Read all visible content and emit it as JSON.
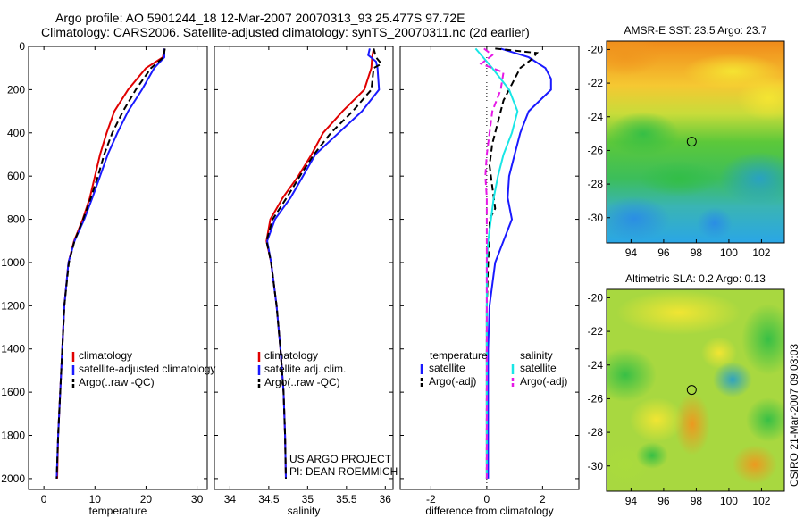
{
  "title": {
    "line1": "Argo profile: AO 5901244_18 12-Mar-2007 20070313_93 25.477S 97.72E",
    "line2": "Climatology: CARS2006. Satellite-adjusted climatology: synTS_20070311.nc (2d earlier)"
  },
  "credit": "CSIRO 21-Mar-2007 09:03:03",
  "colors": {
    "red": "#e00000",
    "blue": "#1a1aff",
    "black": "#000000",
    "cyan": "#19e6e6",
    "magenta": "#e619e6"
  },
  "chart_data": [
    {
      "type": "line",
      "name": "temperature-profile",
      "xlabel": "temperature",
      "ylabel": "",
      "xlim": [
        -3,
        32
      ],
      "ylim": [
        2050,
        0
      ],
      "xticks": [
        0,
        10,
        20,
        30
      ],
      "yticks": [
        0,
        200,
        400,
        600,
        800,
        1000,
        1200,
        1400,
        1600,
        1800,
        2000
      ],
      "legend": [
        "climatology",
        "satellite-adjusted climatology",
        "Argo(..raw -QC)"
      ],
      "series": [
        {
          "name": "climatology",
          "color": "red",
          "y": [
            10,
            50,
            100,
            200,
            300,
            400,
            500,
            600,
            700,
            800,
            900,
            1000,
            1200,
            1400,
            1600,
            1800,
            2000
          ],
          "values": [
            23.6,
            23.3,
            20,
            16.5,
            13.8,
            12.3,
            11,
            10,
            9,
            7.6,
            5.9,
            4.8,
            4,
            3.6,
            3.2,
            2.8,
            2.6
          ]
        },
        {
          "name": "satellite-adjusted climatology",
          "color": "blue",
          "y": [
            10,
            50,
            100,
            200,
            300,
            400,
            500,
            600,
            700,
            800,
            900,
            1000,
            1200,
            1400,
            1600,
            1800,
            2000
          ],
          "values": [
            23.6,
            23.6,
            21.6,
            19.2,
            16.5,
            14.4,
            12.5,
            11,
            9.5,
            7.9,
            6,
            4.8,
            4,
            3.6,
            3.2,
            2.8,
            2.5
          ]
        },
        {
          "name": "Argo(..raw -QC)",
          "color": "black",
          "y": [
            10,
            50,
            100,
            200,
            300,
            400,
            500,
            600,
            700,
            800,
            900,
            1000,
            1200,
            1400,
            1600,
            1800,
            2000
          ],
          "values": [
            23.7,
            23.4,
            21,
            18,
            15.5,
            13.4,
            11.8,
            10.6,
            9.2,
            7.7,
            6,
            4.9,
            4,
            3.6,
            3.2,
            2.8,
            2.5
          ]
        }
      ]
    },
    {
      "type": "line",
      "name": "salinity-profile",
      "xlabel": "salinity",
      "ylabel": "",
      "xlim": [
        33.8,
        36.1
      ],
      "ylim": [
        2050,
        0
      ],
      "xticks": [
        34,
        34.5,
        35,
        35.5,
        36
      ],
      "legend": [
        "climatology",
        "satellite adj. clim.",
        "Argo(..raw -QC)"
      ],
      "annotation": [
        "US ARGO PROJECT",
        "PI: DEAN ROEMMICH"
      ],
      "series": [
        {
          "name": "climatology",
          "color": "red",
          "y": [
            10,
            50,
            100,
            200,
            300,
            400,
            500,
            600,
            700,
            800,
            900,
            1000,
            1200,
            1400,
            1600,
            1800,
            2000
          ],
          "values": [
            35.85,
            35.83,
            35.82,
            35.73,
            35.45,
            35.2,
            35.05,
            34.88,
            34.68,
            34.52,
            34.47,
            34.53,
            34.6,
            34.65,
            34.69,
            34.71,
            34.72
          ]
        },
        {
          "name": "satellite adj. clim.",
          "color": "blue",
          "y": [
            10,
            40,
            70,
            100,
            200,
            300,
            400,
            500,
            600,
            700,
            800,
            900,
            1000,
            1200,
            1400,
            1600,
            1800,
            2000
          ],
          "values": [
            35.8,
            35.78,
            35.88,
            35.9,
            35.92,
            35.7,
            35.4,
            35.1,
            34.94,
            34.78,
            34.58,
            34.48,
            34.53,
            34.6,
            34.65,
            34.69,
            34.71,
            34.72
          ]
        },
        {
          "name": "Argo(..raw -QC)",
          "color": "black",
          "y": [
            10,
            50,
            80,
            100,
            200,
            300,
            400,
            500,
            600,
            700,
            800,
            900,
            1000,
            1200,
            1400,
            1600,
            1800,
            2000
          ],
          "values": [
            35.85,
            35.88,
            35.95,
            35.85,
            35.82,
            35.58,
            35.3,
            35.08,
            34.9,
            34.73,
            34.55,
            34.47,
            34.53,
            34.6,
            34.65,
            34.69,
            34.71,
            34.72
          ]
        }
      ]
    },
    {
      "type": "line",
      "name": "difference-profile",
      "xlabel": "difference from climatology",
      "ylabel": "",
      "xlim": [
        -3.1,
        3.3
      ],
      "ylim": [
        2050,
        0
      ],
      "xticks": [
        -2,
        0,
        2
      ],
      "legend": {
        "temperature": [
          "satellite",
          "Argo(-adj)"
        ],
        "salinity": [
          "satellite",
          "Argo(-adj)"
        ]
      },
      "legend_headers": [
        "temperature",
        "salinity"
      ],
      "series": [
        {
          "name": "temperature satellite",
          "color": "blue",
          "y": [
            10,
            50,
            100,
            150,
            200,
            300,
            400,
            500,
            600,
            700,
            800,
            900,
            1000,
            1200,
            1400,
            1600,
            1800,
            2000
          ],
          "values": [
            0.5,
            1.5,
            2.1,
            2.3,
            2.3,
            1.5,
            1.2,
            1.0,
            0.8,
            0.75,
            0.9,
            0.6,
            0.3,
            0.1,
            0.05,
            0.05,
            0.05,
            0.05
          ]
        },
        {
          "name": "temperature Argo(-adj)",
          "color": "black",
          "y": [
            10,
            30,
            60,
            100,
            150,
            250,
            350,
            450,
            550,
            650,
            750,
            800,
            900,
            1000,
            1200,
            1400,
            1600,
            1800,
            2000
          ],
          "values": [
            0.3,
            1.8,
            1.6,
            1.2,
            1.0,
            0.6,
            0.4,
            0.2,
            0.1,
            0.2,
            0.3,
            0.1,
            0.1,
            0.05,
            0.0,
            0.0,
            0.0,
            0.0,
            0.0
          ]
        },
        {
          "name": "salinity satellite",
          "color": "cyan",
          "y": [
            10,
            100,
            200,
            300,
            400,
            500,
            600,
            700,
            800,
            900,
            1000,
            1200,
            1400,
            1600,
            1800,
            2000
          ],
          "values": [
            -0.4,
            0.2,
            0.8,
            1.1,
            0.9,
            0.6,
            0.4,
            0.25,
            0.15,
            0.05,
            0.0,
            0.0,
            0.0,
            0.0,
            0.0,
            0.0
          ]
        },
        {
          "name": "salinity Argo(-adj)",
          "color": "magenta",
          "y": [
            10,
            40,
            80,
            120,
            200,
            300,
            400,
            500,
            600,
            700,
            800,
            900,
            1000,
            1200,
            1400,
            1600,
            1800,
            2000
          ],
          "values": [
            -0.1,
            0.2,
            -0.2,
            0.6,
            0.5,
            0.2,
            0.1,
            0.0,
            -0.05,
            0.0,
            0.0,
            0.0,
            0.0,
            0.0,
            0.0,
            0.0,
            0.0,
            0.0
          ]
        }
      ]
    },
    {
      "type": "heatmap",
      "name": "amsr-sst-map",
      "title": "AMSR-E SST: 23.5 Argo: 23.7",
      "xlim": [
        92.5,
        103.4
      ],
      "ylim": [
        -31.5,
        -19.5
      ],
      "xticks": [
        94,
        96,
        98,
        100,
        102
      ],
      "yticks": [
        -20,
        -22,
        -24,
        -26,
        -28,
        -30
      ],
      "marker": {
        "lon": 97.72,
        "lat": -25.477
      }
    },
    {
      "type": "heatmap",
      "name": "altimetric-sla-map",
      "title": "Altimetric SLA: 0.2 Argo: 0.13",
      "xlim": [
        92.5,
        103.4
      ],
      "ylim": [
        -31.5,
        -19.5
      ],
      "xticks": [
        94,
        96,
        98,
        100,
        102
      ],
      "yticks": [
        -20,
        -22,
        -24,
        -26,
        -28,
        -30
      ],
      "marker": {
        "lon": 97.72,
        "lat": -25.477
      }
    }
  ]
}
